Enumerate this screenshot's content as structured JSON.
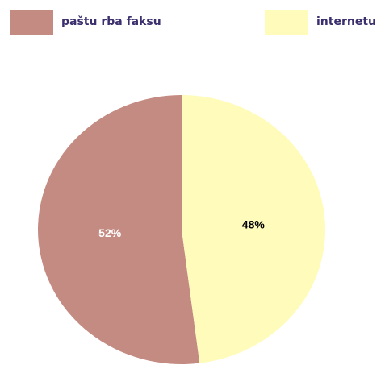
{
  "chart_data": {
    "type": "pie",
    "categories": [
      "paštu rba faksu",
      "internetu"
    ],
    "values": [
      52,
      48
    ],
    "value_labels": [
      "52%",
      "48%"
    ],
    "colors": [
      "#c48b82",
      "#fffbbb"
    ],
    "label_colors": [
      "#ffffff",
      "#000000"
    ],
    "legend": "top"
  }
}
